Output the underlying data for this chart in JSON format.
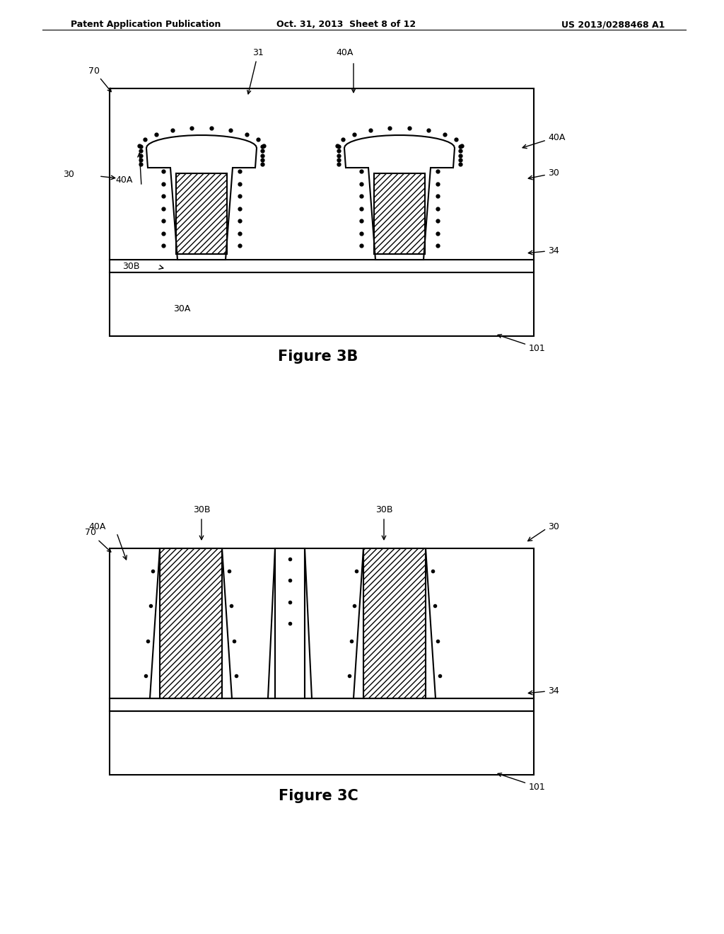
{
  "header_left": "Patent Application Publication",
  "header_center": "Oct. 31, 2013  Sheet 8 of 12",
  "header_right": "US 2013/0288468 A1",
  "fig3b_title": "Figure 3B",
  "fig3c_title": "Figure 3C",
  "bg_color": "#ffffff",
  "line_color": "#000000"
}
